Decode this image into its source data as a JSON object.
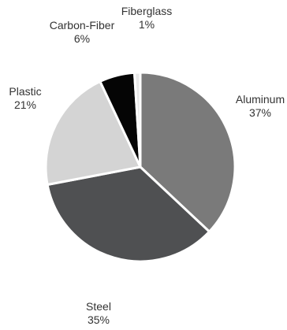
{
  "chart_data": {
    "type": "pie",
    "slices": [
      {
        "label": "Aluminum",
        "percent_label": "37%",
        "value": 37,
        "color": "#7a7a7a"
      },
      {
        "label": "Steel",
        "percent_label": "35%",
        "value": 35,
        "color": "#4f5052"
      },
      {
        "label": "Plastic",
        "percent_label": "21%",
        "value": 21,
        "color": "#d4d4d4"
      },
      {
        "label": "Carbon-Fiber",
        "percent_label": "6%",
        "value": 6,
        "color": "#050505"
      },
      {
        "label": "Fiberglass",
        "percent_label": "1%",
        "value": 1,
        "color": "#e8e8e8"
      }
    ],
    "start": "12 o'clock",
    "direction": "clockwise",
    "slice_separator_color": "#ffffff",
    "legend": "none"
  }
}
